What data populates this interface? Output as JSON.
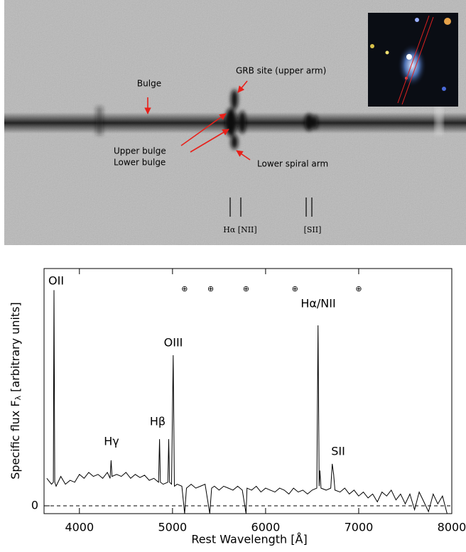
{
  "spectrum_2d": {
    "labels": [
      "Bulge",
      "GRB site (upper arm)",
      "Upper bulge",
      "Lower bulge",
      "Lower spiral arm"
    ],
    "line_markers": [
      "Hα [NII]",
      "[SII]"
    ]
  },
  "chart_data": {
    "type": "line",
    "xlabel": "Rest Wavelength [Å]",
    "ylabel_main": "Specific flux F",
    "ylabel_sub": "λ",
    "ylabel_end": " [arbitrary units]",
    "xlim": [
      3620,
      8000
    ],
    "ylim": [
      -0.2,
      6.05
    ],
    "xticks": [
      4000,
      5000,
      6000,
      7000,
      8000
    ],
    "yticks": [
      0
    ],
    "zero_line": "dashed",
    "color": "#000000",
    "annotations": [
      "OII",
      "Hγ",
      "Hβ",
      "OIII",
      "Hα/NII",
      "SII"
    ],
    "telluric_markers": {
      "symbol": "⊕",
      "x": [
        5130,
        5410,
        5790,
        6315,
        7000
      ]
    },
    "x": [
      3650,
      3700,
      3720,
      3727,
      3735,
      3750,
      3800,
      3850,
      3900,
      3950,
      4000,
      4050,
      4100,
      4150,
      4200,
      4250,
      4300,
      4330,
      4340,
      4350,
      4400,
      4450,
      4500,
      4550,
      4600,
      4650,
      4700,
      4750,
      4800,
      4850,
      4861,
      4870,
      4900,
      4950,
      4959,
      4968,
      4990,
      5007,
      5020,
      5050,
      5100,
      5130,
      5150,
      5200,
      5250,
      5300,
      5350,
      5400,
      5420,
      5450,
      5500,
      5550,
      5600,
      5650,
      5700,
      5750,
      5790,
      5800,
      5850,
      5900,
      5950,
      6000,
      6050,
      6100,
      6150,
      6200,
      6250,
      6300,
      6350,
      6400,
      6450,
      6500,
      6550,
      6563,
      6575,
      6583,
      6595,
      6650,
      6700,
      6716,
      6731,
      6745,
      6800,
      6850,
      6900,
      6950,
      7000,
      7050,
      7100,
      7150,
      7200,
      7250,
      7300,
      7350,
      7400,
      7450,
      7500,
      7550,
      7600,
      7650,
      7700,
      7750,
      7800,
      7850,
      7900,
      7950
    ],
    "values": [
      0.7,
      0.55,
      0.6,
      5.5,
      0.6,
      0.5,
      0.75,
      0.55,
      0.65,
      0.6,
      0.8,
      0.7,
      0.85,
      0.75,
      0.8,
      0.7,
      0.85,
      0.7,
      1.16,
      0.75,
      0.8,
      0.75,
      0.85,
      0.7,
      0.8,
      0.72,
      0.78,
      0.65,
      0.7,
      0.6,
      1.7,
      0.6,
      0.55,
      0.6,
      1.7,
      0.6,
      0.55,
      3.84,
      0.5,
      0.55,
      0.5,
      -0.2,
      0.45,
      0.55,
      0.45,
      0.5,
      0.55,
      -0.2,
      0.45,
      0.5,
      0.4,
      0.5,
      0.45,
      0.4,
      0.5,
      0.4,
      -0.2,
      0.45,
      0.4,
      0.5,
      0.35,
      0.45,
      0.4,
      0.35,
      0.45,
      0.4,
      0.3,
      0.45,
      0.35,
      0.4,
      0.3,
      0.4,
      0.45,
      4.6,
      0.5,
      0.9,
      0.45,
      0.4,
      0.45,
      1.07,
      0.8,
      0.4,
      0.35,
      0.45,
      0.3,
      0.4,
      0.25,
      0.35,
      0.2,
      0.3,
      0.1,
      0.35,
      0.25,
      0.4,
      0.15,
      0.3,
      0.05,
      0.3,
      -0.1,
      0.35,
      0.1,
      -0.15,
      0.3,
      0.05,
      0.25,
      -0.2
    ]
  }
}
